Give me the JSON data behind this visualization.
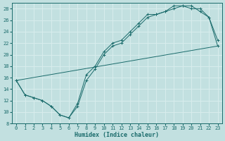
{
  "xlabel": "Humidex (Indice chaleur)",
  "xlim": [
    -0.5,
    23.5
  ],
  "ylim": [
    8,
    29
  ],
  "xticks": [
    0,
    1,
    2,
    3,
    4,
    5,
    6,
    7,
    8,
    9,
    10,
    11,
    12,
    13,
    14,
    15,
    16,
    17,
    18,
    19,
    20,
    21,
    22,
    23
  ],
  "yticks": [
    8,
    10,
    12,
    14,
    16,
    18,
    20,
    22,
    24,
    26,
    28
  ],
  "bg_color": "#c2e0e0",
  "grid_color": "#d8eded",
  "line_color": "#1a6b6b",
  "line1_x": [
    0,
    1,
    2,
    3,
    4,
    5,
    6,
    7,
    8,
    9,
    10,
    11,
    12,
    13,
    14,
    15,
    16,
    17,
    18,
    19,
    20,
    21,
    22,
    23
  ],
  "line1_y": [
    15.5,
    13,
    12.5,
    12,
    11,
    9.5,
    9,
    11,
    15.5,
    17.5,
    20,
    21.5,
    22,
    23.5,
    25,
    26.5,
    27,
    27.5,
    28,
    28.5,
    28.5,
    27.5,
    26.5,
    22.5
  ],
  "line2_x": [
    0,
    1,
    2,
    3,
    4,
    5,
    6,
    7,
    8,
    9,
    10,
    11,
    12,
    13,
    14,
    15,
    16,
    17,
    18,
    19,
    20,
    21,
    22,
    23
  ],
  "line2_y": [
    15.5,
    13,
    12.5,
    12,
    11,
    9.5,
    9,
    11.5,
    16.5,
    18,
    20.5,
    22,
    22.5,
    24,
    25.5,
    27,
    27,
    27.5,
    28.5,
    28.5,
    28,
    28,
    26.5,
    21.5
  ],
  "line3_x": [
    0,
    23
  ],
  "line3_y": [
    15.5,
    21.5
  ]
}
